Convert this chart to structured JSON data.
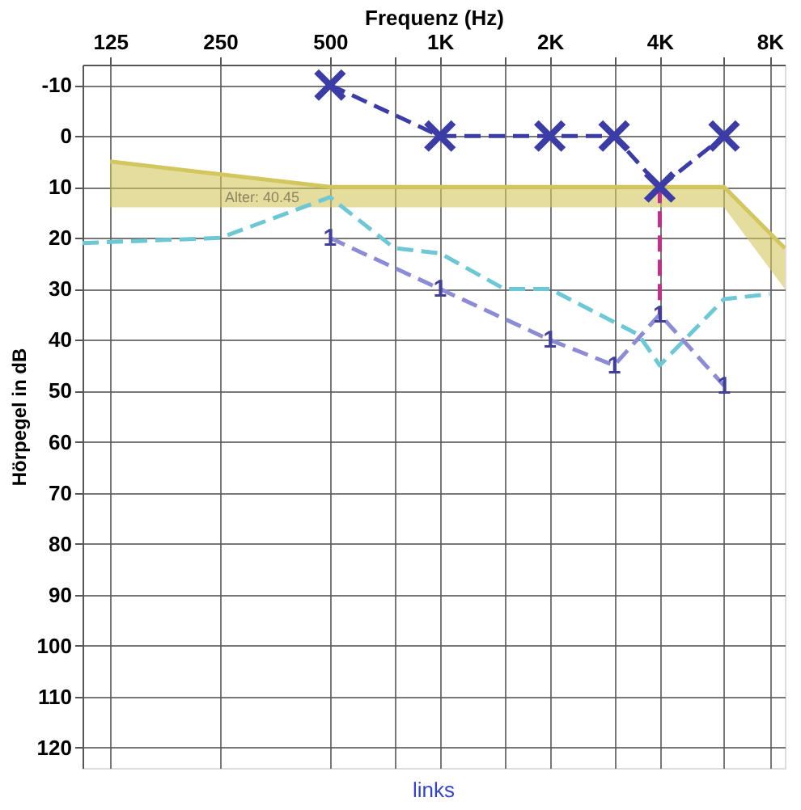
{
  "chart_data": {
    "type": "line",
    "xlabel": "Frequenz (Hz)",
    "ylabel": "Hörpegel in dB",
    "log": "x",
    "grid": true,
    "xlim": [
      105,
      8800
    ],
    "xticks": [
      125,
      250,
      500,
      {
        "value": 750,
        "label": null
      },
      {
        "value": 1000,
        "label": "1K"
      },
      {
        "value": 1500,
        "label": null
      },
      {
        "value": 2000,
        "label": "2K"
      },
      {
        "value": 3000,
        "label": null
      },
      {
        "value": 4000,
        "label": "4K"
      },
      {
        "value": 6000,
        "label": null
      },
      {
        "value": 8000,
        "label": "8K"
      }
    ],
    "ylim": [
      124,
      -14
    ],
    "yticks": [
      -10,
      0,
      10,
      20,
      30,
      40,
      50,
      60,
      70,
      80,
      90,
      100,
      110,
      120
    ],
    "series": [
      {
        "color": "#d2c65e",
        "line_style": "solid",
        "marker": "none",
        "x": [
          125,
          500,
          6000,
          8800
        ],
        "values": [
          5,
          10,
          10,
          22
        ],
        "upper": [
          5,
          10,
          10,
          22
        ],
        "lower": [
          14,
          14,
          14,
          30
        ]
      },
      {
        "color": "#6cc8d4",
        "line_style": "dashed",
        "marker": "none",
        "x": [
          105,
          250,
          500,
          750,
          1000,
          1500,
          2000,
          3500,
          4000,
          6000,
          8000
        ],
        "values": [
          21,
          20,
          12,
          22,
          23,
          30,
          30,
          39,
          45,
          32,
          31
        ]
      },
      {
        "color": "#8c8cd6",
        "line_style": "dashed",
        "marker": "none",
        "x": [
          500,
          1000,
          2000,
          3000,
          4000,
          6000
        ],
        "values": [
          20,
          30,
          40,
          45,
          35,
          49
        ]
      },
      {
        "color": "#c0308a",
        "line_style": "dashed",
        "marker": "none",
        "x": [
          4000,
          4000
        ],
        "values": [
          10,
          35
        ]
      },
      {
        "color": "#3c3ca6",
        "line_style": "dashed",
        "marker": "cross",
        "x": [
          500,
          1000,
          2000,
          3000,
          4000,
          6000
        ],
        "values": [
          -10,
          0,
          0,
          0,
          10,
          0
        ]
      }
    ],
    "annotations": [
      "Alter: 40.45",
      {
        "text": "1",
        "x": 500,
        "y": 20
      },
      {
        "text": "1",
        "x": 1000,
        "y": 30
      },
      {
        "text": "1",
        "x": 2000,
        "y": 40
      },
      {
        "text": "1",
        "x": 3000,
        "y": 45
      },
      {
        "text": "1",
        "x": 4000,
        "y": 35
      },
      {
        "text": "1",
        "x": 6000,
        "y": 49
      },
      "links"
    ]
  }
}
